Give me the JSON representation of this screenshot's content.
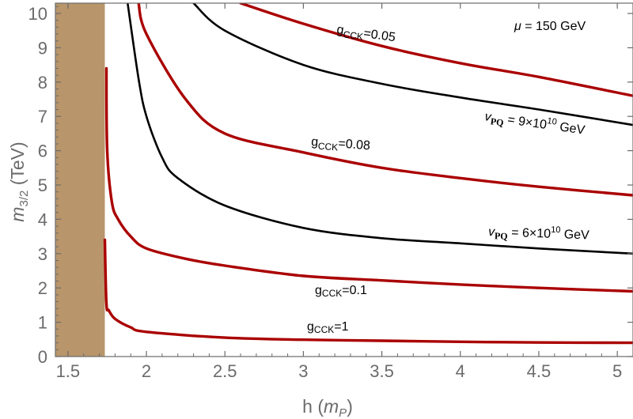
{
  "chart_data": {
    "type": "line",
    "xlabel": "h",
    "xlabel_unit": "m",
    "xlabel_unit_sub": "P",
    "ylabel_main": "m",
    "ylabel_sub": "3/2",
    "ylabel_unit": "(TeV)",
    "xlim": [
      1.42,
      5.1
    ],
    "ylim": [
      0,
      10.3
    ],
    "x_ticks": [
      1.5,
      2,
      2.5,
      3,
      3.5,
      4,
      4.5,
      5
    ],
    "x_tick_labels": [
      "1.5",
      "2",
      "2.5",
      "3",
      "3.5",
      "4",
      "4.5",
      "5"
    ],
    "y_ticks": [
      0,
      1,
      2,
      3,
      4,
      5,
      6,
      7,
      8,
      9,
      10
    ],
    "y_tick_labels": [
      "0",
      "1",
      "2",
      "3",
      "4",
      "5",
      "6",
      "7",
      "8",
      "9",
      "10"
    ],
    "grid": false,
    "colors": {
      "red_curves": "#aa0000",
      "black_curves": "#000000",
      "excluded_region": "#b8956a",
      "axis": "#6b6b6b"
    },
    "excluded_region": {
      "x_min": 1.42,
      "x_max": 1.735,
      "y_min": 0,
      "y_max": 10.3
    },
    "mu_label": {
      "symbol": "μ",
      "text": " = 150 GeV"
    },
    "series": [
      {
        "color": "red",
        "label": {
          "base": "g",
          "sub": "CCK",
          "rest": "=1"
        },
        "x": [
          1.735,
          1.745,
          1.76,
          1.8,
          1.9,
          2.0,
          2.5,
          3.0,
          3.5,
          4.0,
          4.5,
          5.1
        ],
        "y": [
          3.4,
          1.55,
          1.35,
          1.1,
          0.85,
          0.72,
          0.55,
          0.49,
          0.46,
          0.43,
          0.41,
          0.4
        ]
      },
      {
        "color": "red",
        "label": {
          "base": "g",
          "sub": "CCK",
          "rest": "=0.1"
        },
        "x": [
          1.745,
          1.75,
          1.78,
          1.82,
          1.9,
          2.0,
          2.25,
          2.5,
          3.0,
          3.5,
          4.0,
          4.5,
          5.1
        ],
        "y": [
          8.4,
          6.0,
          4.5,
          4.0,
          3.5,
          3.15,
          2.85,
          2.65,
          2.35,
          2.22,
          2.1,
          2.0,
          1.9
        ]
      },
      {
        "color": "black",
        "label": {
          "base": "v",
          "sub": "PQ",
          "rest": " = 6×10",
          "sup": "10",
          "unit": " GeV"
        },
        "x": [
          1.88,
          1.95,
          2.0,
          2.1,
          2.2,
          2.5,
          3.0,
          3.5,
          4.0,
          4.5,
          5.1
        ],
        "y": [
          10.3,
          8.1,
          7.0,
          5.8,
          5.2,
          4.4,
          3.75,
          3.45,
          3.3,
          3.15,
          3.0
        ]
      },
      {
        "color": "red",
        "label": {
          "base": "g",
          "sub": "CCK",
          "rest": "=0.08"
        },
        "x": [
          1.95,
          2.0,
          2.25,
          2.5,
          3.0,
          3.5,
          4.0,
          4.5,
          5.1
        ],
        "y": [
          10.3,
          9.4,
          7.5,
          6.5,
          5.95,
          5.5,
          5.2,
          4.95,
          4.7
        ]
      },
      {
        "color": "black",
        "label": {
          "base": "v",
          "sub": "PQ",
          "rest": " = 9×10",
          "sup": "10",
          "unit": " GeV"
        },
        "x": [
          2.3,
          2.5,
          3.0,
          3.5,
          4.0,
          4.5,
          5.1
        ],
        "y": [
          10.3,
          9.5,
          8.5,
          7.95,
          7.55,
          7.2,
          6.75
        ]
      },
      {
        "color": "red",
        "label": {
          "base": "g",
          "sub": "CCK",
          "rest": "=0.05"
        },
        "x": [
          2.6,
          3.0,
          3.5,
          4.0,
          4.5,
          5.1
        ],
        "y": [
          10.3,
          9.7,
          9.05,
          8.55,
          8.15,
          7.6
        ]
      }
    ]
  }
}
